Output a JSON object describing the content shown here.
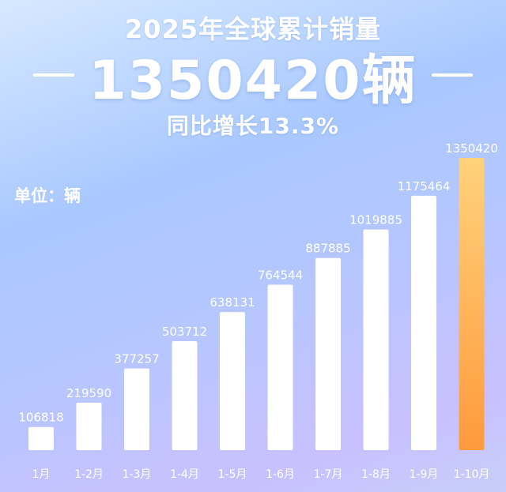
{
  "header": {
    "title": "2025年全球累计销量",
    "total": "1350420辆",
    "growth": "同比增长13.3%",
    "unit_label": "单位：辆"
  },
  "colors": {
    "bar": "#ffffff",
    "highlight_bar_top": "#ffd27a",
    "highlight_bar_bottom": "#ff9a3c",
    "label": "#ffffff"
  },
  "chart_data": {
    "type": "bar",
    "title": "2025年全球累计销量",
    "ylabel": "单位：辆",
    "categories": [
      "1月",
      "1-2月",
      "1-3月",
      "1-4月",
      "1-5月",
      "1-6月",
      "1-7月",
      "1-8月",
      "1-9月",
      "1-10月"
    ],
    "values": [
      106818,
      219590,
      377257,
      503712,
      638131,
      764544,
      887885,
      1019885,
      1175464,
      1350420
    ],
    "highlight_index": 9,
    "ylim": [
      0,
      1350420
    ],
    "grid": false,
    "legend": "none"
  }
}
